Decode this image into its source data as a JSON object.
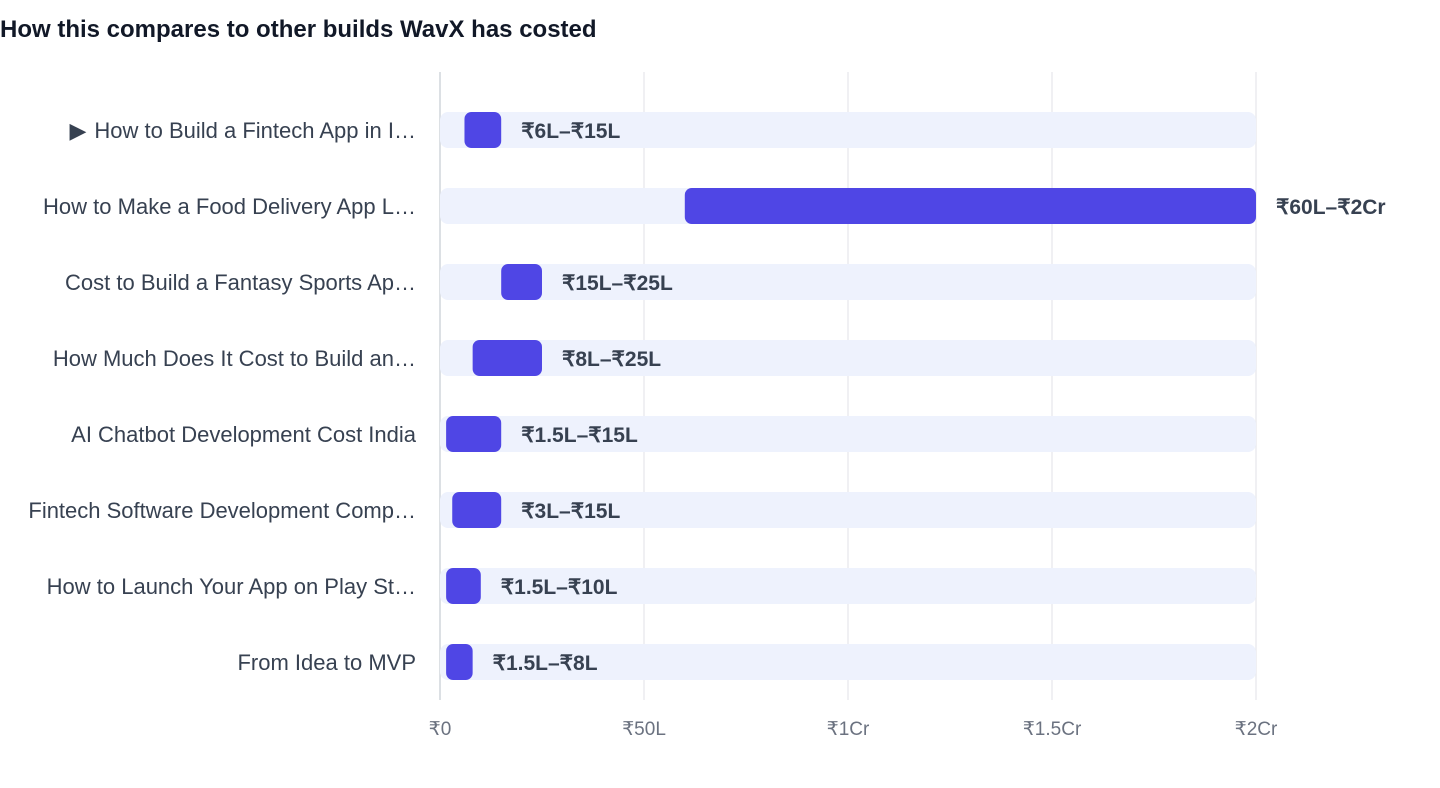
{
  "chart_data": {
    "type": "bar",
    "orientation": "horizontal",
    "range_bars": true,
    "title": "How this compares to other builds WavX has costed",
    "categories": [
      "How to Build a Fintech App in India",
      "How to Make a Food Delivery App Like Swiggy",
      "Cost to Build a Fantasy Sports App",
      "How Much Does It Cost to Build an App",
      "AI Chatbot Development Cost India",
      "Fintech Software Development Company",
      "How to Launch Your App on Play Store",
      "From Idea to MVP"
    ],
    "display_labels": [
      "How to Build a Fintech App in I…",
      "How to Make a Food Delivery App L…",
      "Cost to Build a Fantasy Sports Ap…",
      "How Much Does It Cost to Build an…",
      "AI Chatbot Development Cost India",
      "Fintech Software Development Comp…",
      "How to Launch Your App on Play St…",
      "From Idea to MVP"
    ],
    "current_index": 0,
    "current_marker": "▶",
    "series": [
      {
        "low": [
          6,
          60,
          15,
          8,
          1.5,
          3,
          1.5,
          1.5
        ],
        "high": [
          15,
          200,
          25,
          25,
          15,
          15,
          10,
          8
        ]
      }
    ],
    "value_labels": [
      "₹6L–₹15L",
      "₹60L–₹2Cr",
      "₹15L–₹25L",
      "₹8L–₹25L",
      "₹1.5L–₹15L",
      "₹3L–₹15L",
      "₹1.5L–₹10L",
      "₹1.5L–₹8L"
    ],
    "value_unit": "lakh INR",
    "xlim": [
      0,
      200
    ],
    "x_ticks": [
      0,
      50,
      100,
      150,
      200
    ],
    "x_tick_labels": [
      "₹0",
      "₹50L",
      "₹1Cr",
      "₹1.5Cr",
      "₹2Cr"
    ],
    "grid": true,
    "legend": "none",
    "colors": {
      "bar": "#4f46e5",
      "track": "#eef2fd",
      "grid": "#e5e7eb",
      "axis": "#d1d5db",
      "label": "#374151",
      "tick": "#6b7280",
      "title": "#111827"
    }
  }
}
